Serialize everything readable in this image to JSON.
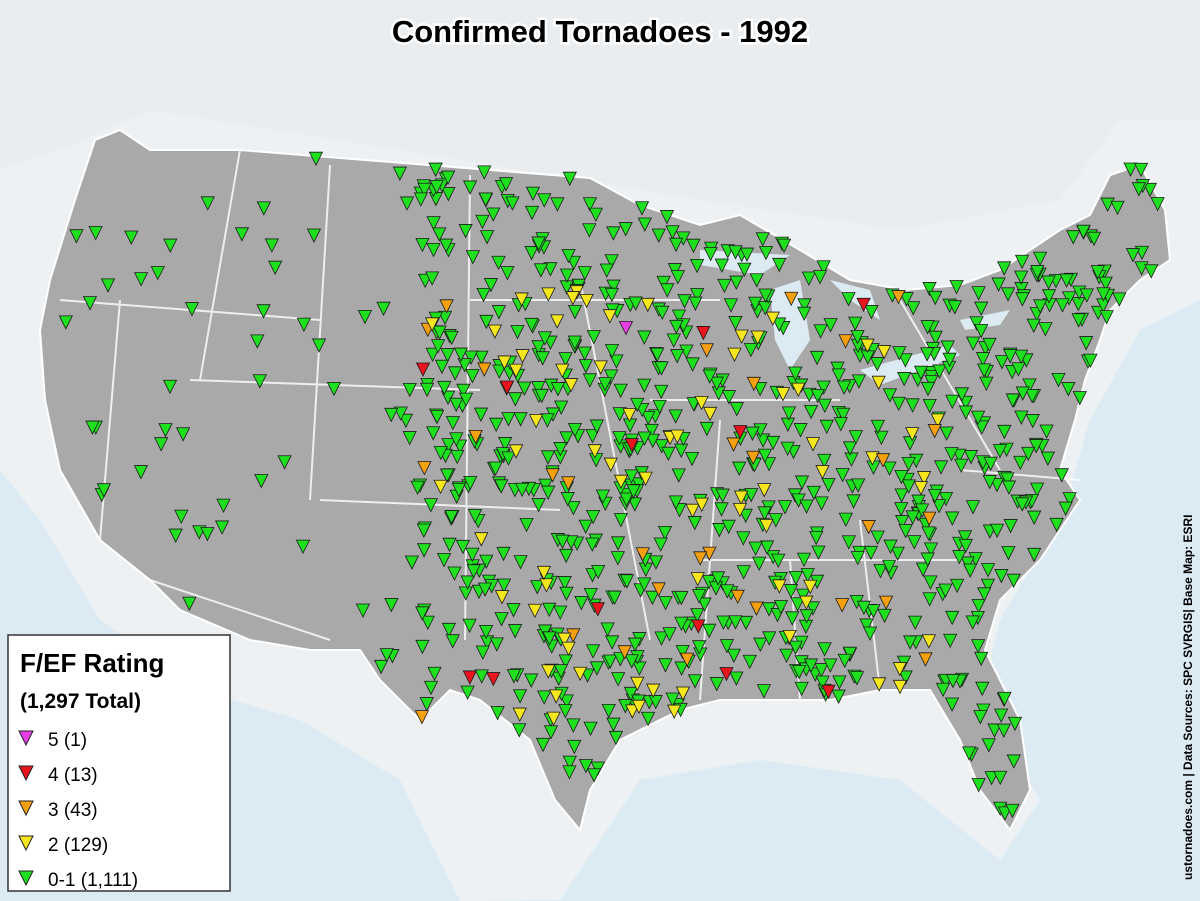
{
  "title": "Confirmed Tornadoes - 1992",
  "legend": {
    "title": "F/EF Rating",
    "subtitle": "(1,297 Total)",
    "items": [
      {
        "label": "5 (1)",
        "color": "#e83ee8"
      },
      {
        "label": "4 (13)",
        "color": "#e8141e"
      },
      {
        "label": "3 (43)",
        "color": "#f5a00f"
      },
      {
        "label": "2 (129)",
        "color": "#f5e61e"
      },
      {
        "label": "0-1 (1,111)",
        "color": "#1fe01f"
      }
    ]
  },
  "credit": "ustornadoes.com | Data Sources: SPC SVRGIS| Base Map: ESRI"
}
